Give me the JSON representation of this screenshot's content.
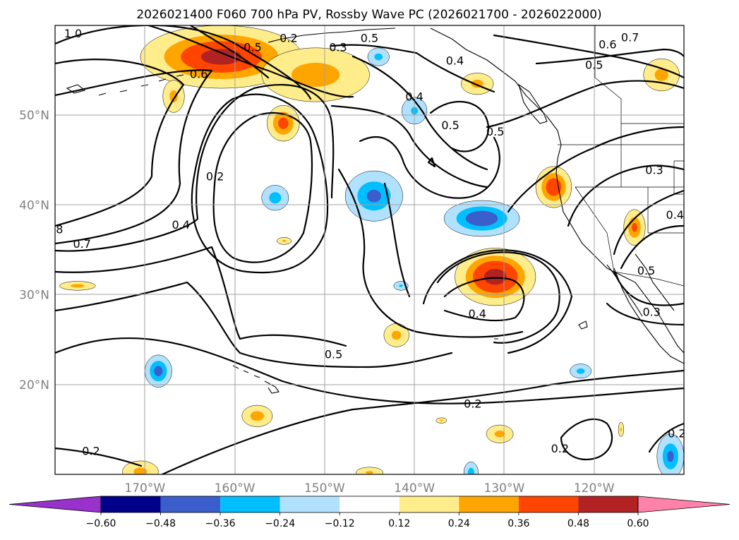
{
  "title": "2026021400 F060 700 hPa PV, Rossby Wave PC (2026021700 - 2026022000)",
  "map": {
    "lon_range": [
      -180,
      -110
    ],
    "lat_range": [
      10,
      60
    ],
    "projection": "PlateCarree",
    "gridlines": true,
    "lon_tick_labels": [
      {
        "lon": -170,
        "label": "170°W"
      },
      {
        "lon": -160,
        "label": "160°W"
      },
      {
        "lon": -150,
        "label": "150°W"
      },
      {
        "lon": -140,
        "label": "140°W"
      },
      {
        "lon": -130,
        "label": "130°W"
      },
      {
        "lon": -120,
        "label": "120°W"
      }
    ],
    "lat_tick_labels": [
      {
        "lat": 20,
        "label": "20°N"
      },
      {
        "lat": 30,
        "label": "30°N"
      },
      {
        "lat": 40,
        "label": "40°N"
      },
      {
        "lat": 50,
        "label": "50°N"
      }
    ],
    "pv_contour_labels": [
      {
        "text": "1.0",
        "lon": -178,
        "lat": 59
      },
      {
        "text": "0.5",
        "lon": -158,
        "lat": 57.5
      },
      {
        "text": "0.6",
        "lon": -164,
        "lat": 54.5
      },
      {
        "text": "0.2",
        "lon": -154,
        "lat": 58.5
      },
      {
        "text": "0.3",
        "lon": -148.5,
        "lat": 57.5
      },
      {
        "text": "0.5",
        "lon": -145,
        "lat": 58.5
      },
      {
        "text": "0.4",
        "lon": -140,
        "lat": 52
      },
      {
        "text": "0.4",
        "lon": -135.5,
        "lat": 56
      },
      {
        "text": "0.5",
        "lon": -136,
        "lat": 48.8
      },
      {
        "text": "0.5",
        "lon": -131,
        "lat": 48.1
      },
      {
        "text": "0.6",
        "lon": -118.5,
        "lat": 57.8
      },
      {
        "text": "0.7",
        "lon": -116,
        "lat": 58.6
      },
      {
        "text": "0.5",
        "lon": -120,
        "lat": 55.5
      },
      {
        "text": "0.2",
        "lon": -162.2,
        "lat": 43.1
      },
      {
        "text": "0.4",
        "lon": -166,
        "lat": 37.7
      },
      {
        "text": "8",
        "lon": -179.5,
        "lat": 37.2
      },
      {
        "text": "0.7",
        "lon": -177,
        "lat": 35.6
      },
      {
        "text": "0.3",
        "lon": -113.3,
        "lat": 43.8
      },
      {
        "text": "0.4",
        "lon": -111,
        "lat": 38.8
      },
      {
        "text": "0.5",
        "lon": -114.2,
        "lat": 32.6
      },
      {
        "text": "0.3",
        "lon": -113.6,
        "lat": 28
      },
      {
        "text": "0.4",
        "lon": -133,
        "lat": 27.8
      },
      {
        "text": "0.5",
        "lon": -149,
        "lat": 23.3
      },
      {
        "text": "0.2",
        "lon": -133.5,
        "lat": 17.8
      },
      {
        "text": "0.2",
        "lon": -123.8,
        "lat": 12.8
      },
      {
        "text": "0.2",
        "lon": -176,
        "lat": 12.5
      },
      {
        "text": "0.2",
        "lon": -110.8,
        "lat": 14.5
      }
    ]
  },
  "rossby_wave_pc_anomalies": [
    {
      "lon": -161.5,
      "lat": 56.5,
      "value": 0.48,
      "rx": 9,
      "ry": 3.5
    },
    {
      "lon": -151,
      "lat": 54.5,
      "value": 0.3,
      "rx": 6,
      "ry": 3
    },
    {
      "lon": -154.6,
      "lat": 49.1,
      "value": 0.4,
      "rx": 1.8,
      "ry": 2
    },
    {
      "lon": -166.8,
      "lat": 52.1,
      "value": 0.28,
      "rx": 1.2,
      "ry": 1.8
    },
    {
      "lon": -144,
      "lat": 56.5,
      "value": -0.28,
      "rx": 1.2,
      "ry": 1
    },
    {
      "lon": -133,
      "lat": 53.5,
      "value": 0.28,
      "rx": 1.8,
      "ry": 1.2
    },
    {
      "lon": -112.5,
      "lat": 54.5,
      "value": 0.28,
      "rx": 2,
      "ry": 1.8
    },
    {
      "lon": -140,
      "lat": 50.5,
      "value": -0.26,
      "rx": 1.4,
      "ry": 1.5
    },
    {
      "lon": -144.5,
      "lat": 41,
      "value": -0.36,
      "rx": 3.2,
      "ry": 2.8
    },
    {
      "lon": -155.5,
      "lat": 40.8,
      "value": -0.3,
      "rx": 1.5,
      "ry": 1.4
    },
    {
      "lon": -154.5,
      "lat": 36,
      "value": 0.26,
      "rx": 0.8,
      "ry": 0.4
    },
    {
      "lon": -132.5,
      "lat": 38.5,
      "value": -0.44,
      "rx": 4.2,
      "ry": 2
    },
    {
      "lon": -131,
      "lat": 32,
      "value": 0.52,
      "rx": 4.5,
      "ry": 3.2
    },
    {
      "lon": -124.5,
      "lat": 42,
      "value": 0.44,
      "rx": 2,
      "ry": 2.3
    },
    {
      "lon": -115.5,
      "lat": 37.5,
      "value": 0.36,
      "rx": 1.2,
      "ry": 2
    },
    {
      "lon": -177.5,
      "lat": 31,
      "value": 0.28,
      "rx": 2,
      "ry": 0.5
    },
    {
      "lon": -141.5,
      "lat": 31,
      "value": -0.26,
      "rx": 0.8,
      "ry": 0.5
    },
    {
      "lon": -142,
      "lat": 25.5,
      "value": 0.28,
      "rx": 1.4,
      "ry": 1.3
    },
    {
      "lon": -168.5,
      "lat": 21.5,
      "value": -0.4,
      "rx": 1.5,
      "ry": 1.8
    },
    {
      "lon": -157.5,
      "lat": 16.5,
      "value": 0.3,
      "rx": 1.7,
      "ry": 1.2
    },
    {
      "lon": -130.5,
      "lat": 14.5,
      "value": 0.28,
      "rx": 1.5,
      "ry": 1
    },
    {
      "lon": -121.5,
      "lat": 21.5,
      "value": -0.28,
      "rx": 1.2,
      "ry": 0.8
    },
    {
      "lon": -111.5,
      "lat": 12,
      "value": -0.36,
      "rx": 1.5,
      "ry": 2.5
    },
    {
      "lon": -170.5,
      "lat": 10.3,
      "value": 0.28,
      "rx": 2,
      "ry": 1.2
    },
    {
      "lon": -145,
      "lat": 10.2,
      "value": 0.26,
      "rx": 1.5,
      "ry": 0.6
    },
    {
      "lon": -133.7,
      "lat": 10.2,
      "value": -0.3,
      "rx": 0.8,
      "ry": 1.2
    },
    {
      "lon": -117,
      "lat": 15,
      "value": 0.26,
      "rx": 0.3,
      "ry": 0.8
    },
    {
      "lon": -137,
      "lat": 16,
      "value": 0.26,
      "rx": 0.6,
      "ry": 0.3
    }
  ],
  "colorbar": {
    "orientation": "horizontal",
    "extend": "both",
    "levels": [
      -0.6,
      -0.48,
      -0.36,
      -0.24,
      -0.12,
      0.12,
      0.24,
      0.36,
      0.48,
      0.6
    ],
    "colors": [
      "#9932cc",
      "#00008b",
      "#3a5fcd",
      "#00bfff",
      "#b0e2ff",
      "#ffffff",
      "#ffec8b",
      "#ffa500",
      "#ff4500",
      "#b22222",
      "#ff82ab"
    ],
    "tick_labels": [
      "−0.60",
      "−0.48",
      "−0.36",
      "−0.24",
      "−0.12",
      "0.12",
      "0.24",
      "0.36",
      "0.48",
      "0.60"
    ]
  }
}
